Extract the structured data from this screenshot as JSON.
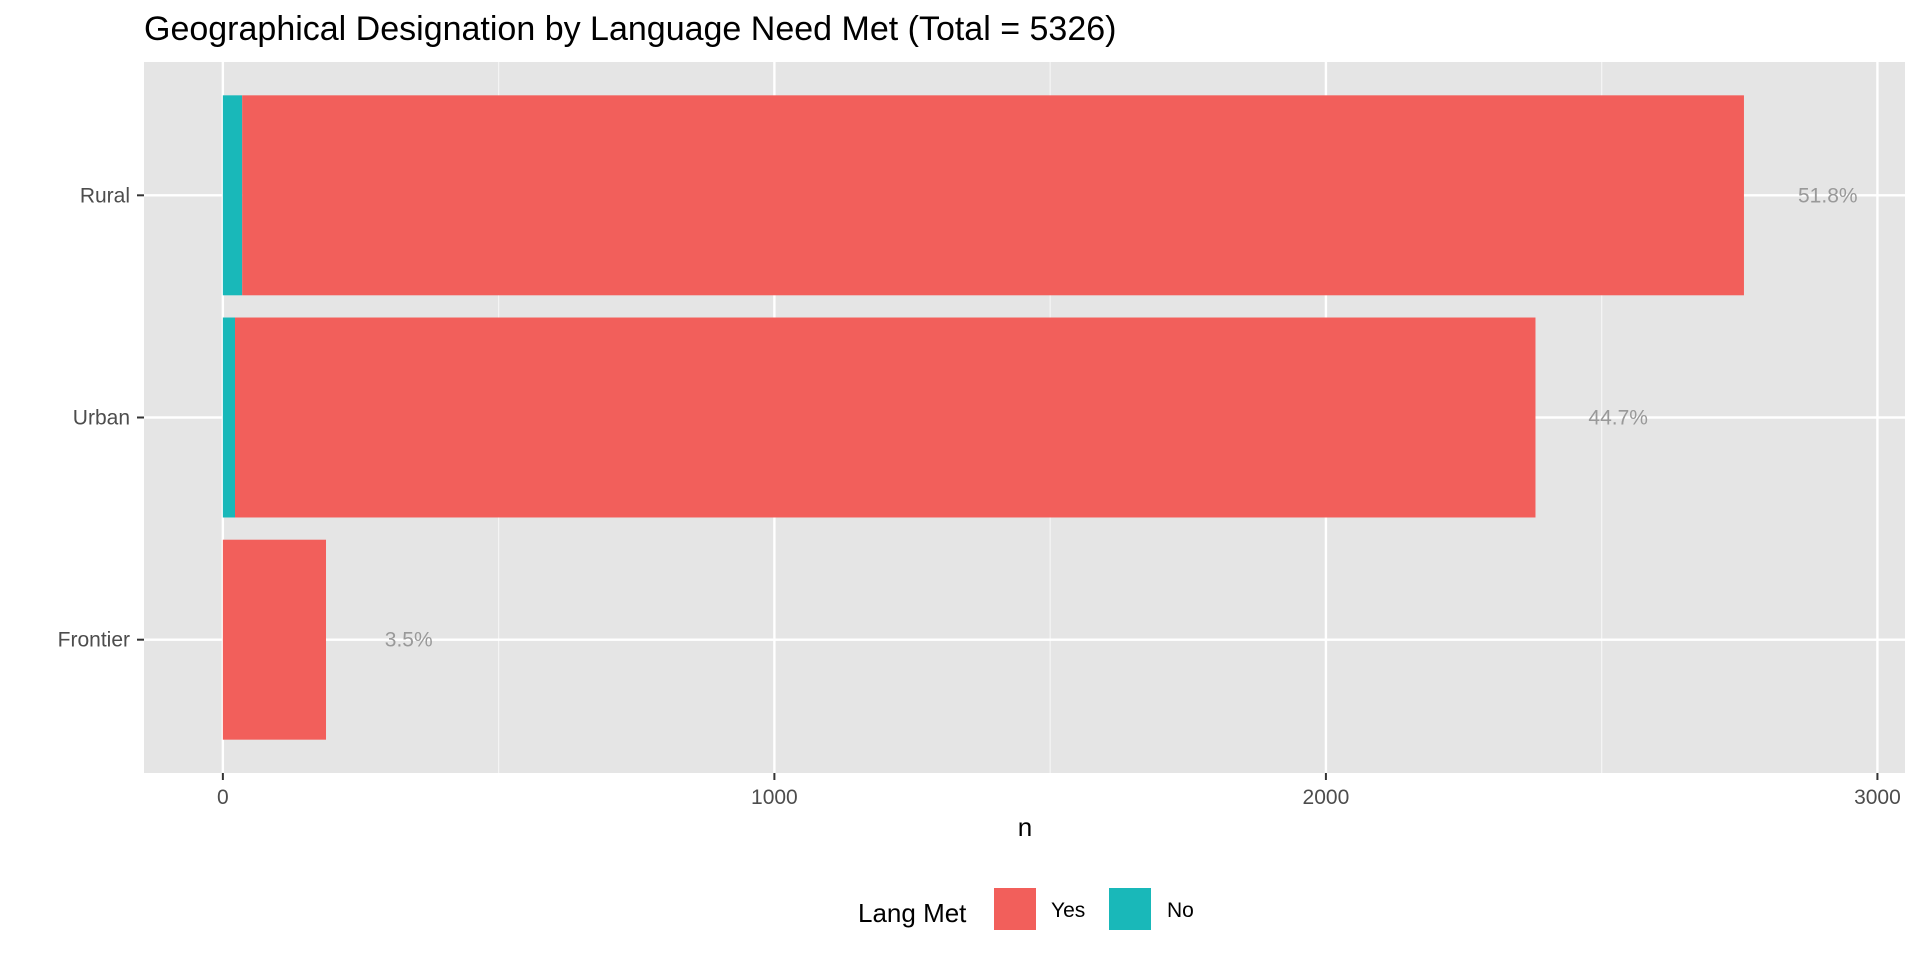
{
  "chart_data": {
    "type": "bar",
    "orientation": "horizontal",
    "stacked": true,
    "title": "Geographical Designation by Language Need Met (Total = 5326)",
    "xlabel": "n",
    "ylabel": "",
    "xlim": [
      -143,
      3050
    ],
    "xticks": [
      0,
      1000,
      2000,
      3000
    ],
    "categories": [
      "Frontier",
      "Urban",
      "Rural"
    ],
    "series": [
      {
        "name": "No",
        "color": "#19B8B9",
        "values": [
          0,
          22,
          35
        ]
      },
      {
        "name": "Yes",
        "color": "#F25F5B",
        "values": [
          187,
          2358,
          2723
        ]
      }
    ],
    "annotations": [
      {
        "category": "Frontier",
        "text": "3.5%",
        "x": 337
      },
      {
        "category": "Urban",
        "text": "44.7%",
        "x": 2530
      },
      {
        "category": "Rural",
        "text": "51.8%",
        "x": 2910
      }
    ],
    "grid": true,
    "legend": {
      "title": "Lang Met",
      "position": "bottom",
      "entries": [
        {
          "label": "Yes",
          "color": "#F25F5B"
        },
        {
          "label": "No",
          "color": "#19B8B9"
        }
      ]
    }
  }
}
